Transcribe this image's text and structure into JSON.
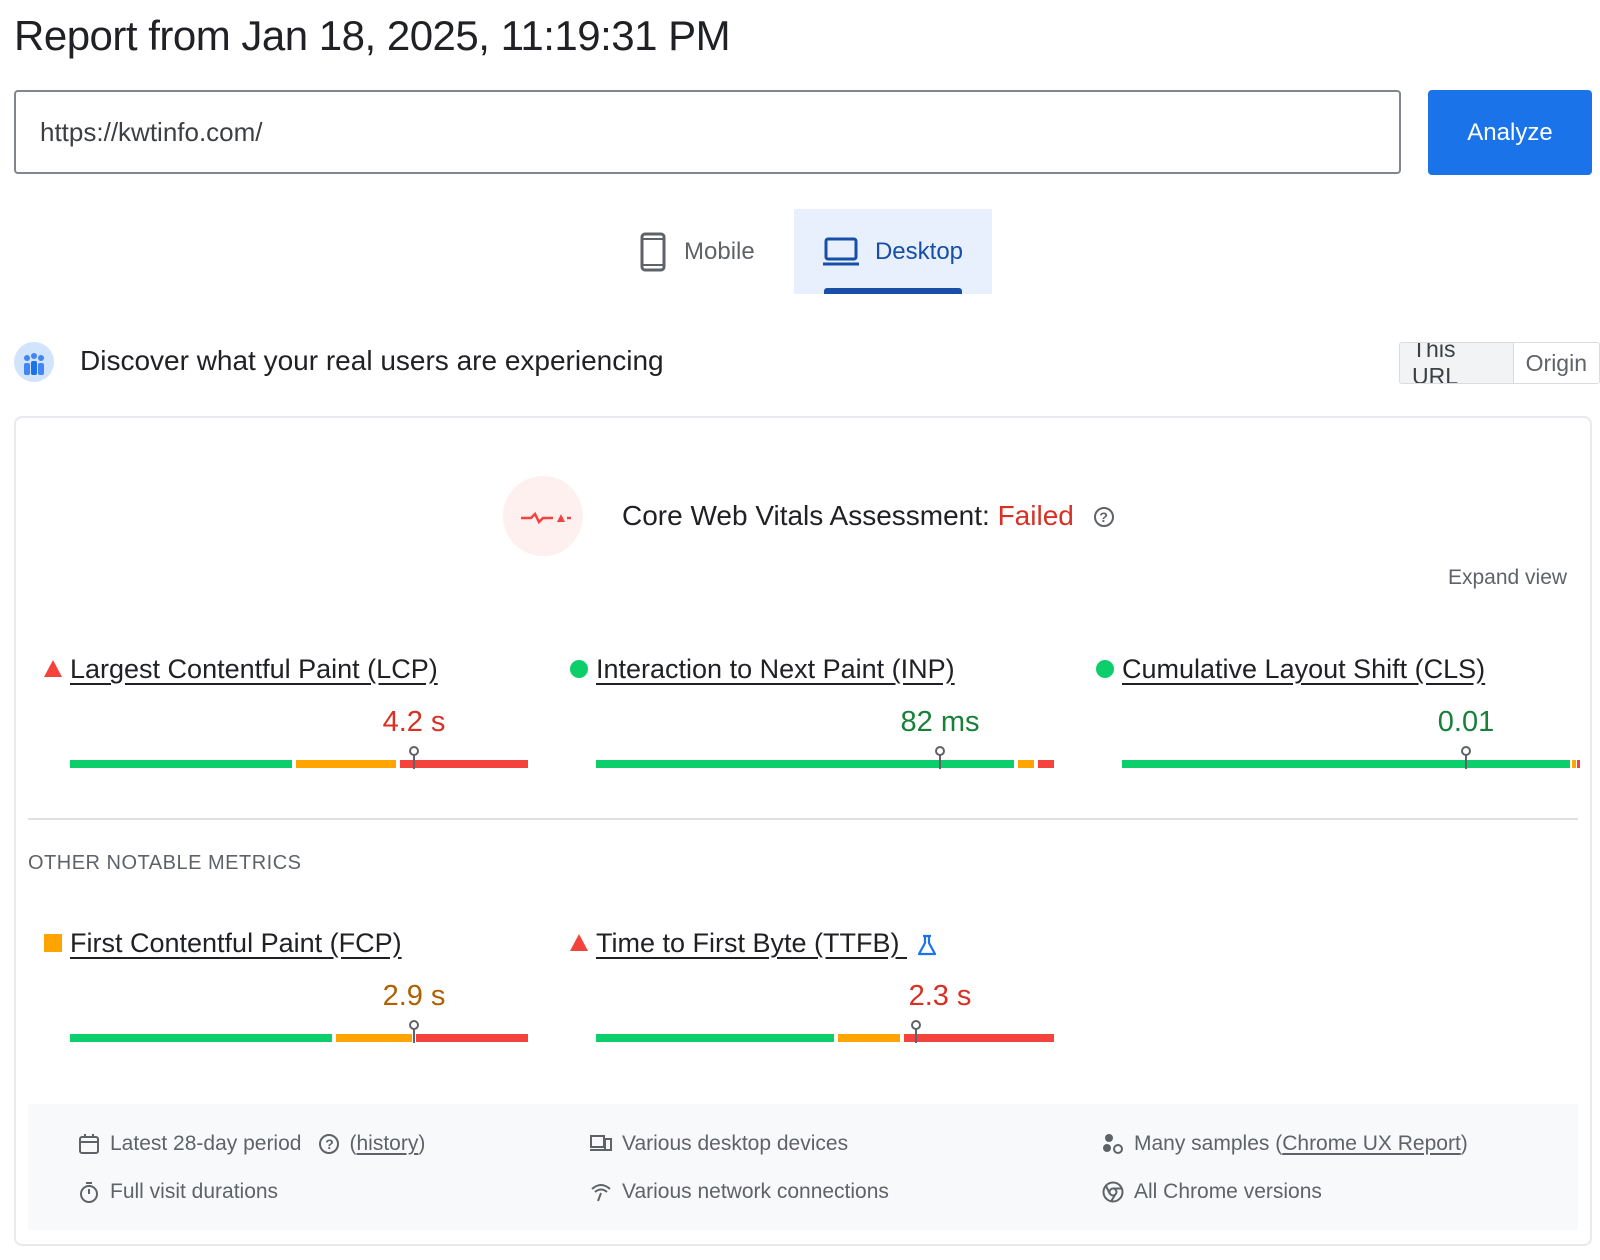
{
  "header": {
    "title": "Report from Jan 18, 2025, 11:19:31 PM"
  },
  "search": {
    "url_value": "https://kwtinfo.com/",
    "analyze_label": "Analyze"
  },
  "device_tabs": {
    "mobile_label": "Mobile",
    "desktop_label": "Desktop",
    "selected": "Desktop"
  },
  "field_data": {
    "heading": "Discover what your real users are experiencing",
    "scope_toggle": {
      "this_url": "This URL",
      "origin": "Origin",
      "selected": "This URL"
    }
  },
  "assessment": {
    "label": "Core Web Vitals Assessment:",
    "status": "Failed",
    "expand_label": "Expand view"
  },
  "core_metrics": [
    {
      "label": "Largest Contentful Paint (LCP)",
      "value": "4.2 s",
      "rating": "poor",
      "marker": "triangle"
    },
    {
      "label": "Interaction to Next Paint (INP)",
      "value": "82 ms",
      "rating": "good",
      "marker": "circle"
    },
    {
      "label": "Cumulative Layout Shift (CLS)",
      "value": "0.01",
      "rating": "good",
      "marker": "circle"
    }
  ],
  "other_metrics": {
    "heading": "OTHER NOTABLE METRICS",
    "items": [
      {
        "label": "First Contentful Paint (FCP)",
        "value": "2.9 s",
        "rating": "average",
        "marker": "square"
      },
      {
        "label": "Time to First Byte (TTFB)",
        "value": "2.3 s",
        "rating": "poor",
        "marker": "triangle",
        "experimental_icon": "flask-icon"
      }
    ]
  },
  "footer": {
    "period": "Latest 28-day period",
    "history_link": "history",
    "devices": "Various desktop devices",
    "samples_prefix": "Many samples (",
    "samples_link": "Chrome UX Report",
    "samples_suffix": ")",
    "visit_durations": "Full visit durations",
    "network": "Various network connections",
    "chrome_versions": "All Chrome versions"
  },
  "colors": {
    "accent": "#1a73e8",
    "good": "#0cce6b",
    "average": "#ffa400",
    "poor": "#f4433c",
    "failed_text": "#d93025"
  }
}
